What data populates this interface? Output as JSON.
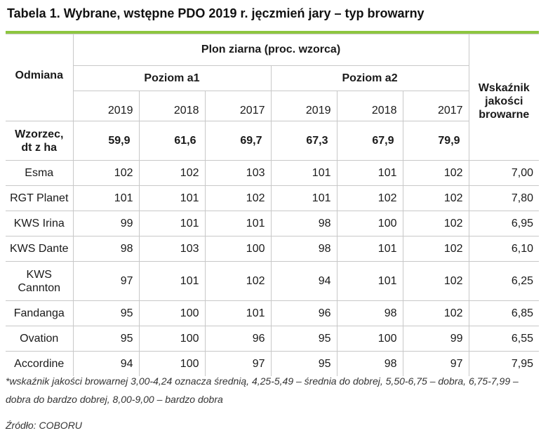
{
  "title": "Tabela 1. Wybrane, wstępne PDO 2019 r. jęczmień jary – typ browarny",
  "accent_color": "#8dc63f",
  "header": {
    "odmiana": "Odmiana",
    "plon": "Plon ziarna (proc. wzorca)",
    "poziom_a1": "Poziom a1",
    "poziom_a2": "Poziom a2",
    "wskaznik_line1": "Wskaźnik",
    "wskaznik_line2": "jakości",
    "wskaznik_line3": "browarne",
    "years": [
      "2019",
      "2018",
      "2017",
      "2019",
      "2018",
      "2017"
    ]
  },
  "wzorzec": {
    "label_line1": "Wzorzec,",
    "label_line2": "dt z ha",
    "values": [
      "59,9",
      "61,6",
      "69,7",
      "67,3",
      "67,9",
      "79,9"
    ]
  },
  "rows": [
    {
      "name": "Esma",
      "values": [
        "102",
        "102",
        "103",
        "101",
        "101",
        "102"
      ],
      "index": "7,00"
    },
    {
      "name": "RGT Planet",
      "values": [
        "101",
        "101",
        "102",
        "101",
        "102",
        "102"
      ],
      "index": "7,80"
    },
    {
      "name": "KWS Irina",
      "values": [
        "99",
        "101",
        "101",
        "98",
        "100",
        "102"
      ],
      "index": "6,95"
    },
    {
      "name": "KWS Dante",
      "values": [
        "98",
        "103",
        "100",
        "98",
        "101",
        "102"
      ],
      "index": "6,10"
    },
    {
      "name_line1": "KWS",
      "name_line2": "Cannton",
      "values": [
        "97",
        "101",
        "102",
        "94",
        "101",
        "102"
      ],
      "index": "6,25"
    },
    {
      "name": "Fandanga",
      "values": [
        "95",
        "100",
        "101",
        "96",
        "98",
        "102"
      ],
      "index": "6,85"
    },
    {
      "name": "Ovation",
      "values": [
        "95",
        "100",
        "96",
        "95",
        "100",
        "99"
      ],
      "index": "6,55"
    },
    {
      "name": "Accordine",
      "values": [
        "94",
        "100",
        "97",
        "95",
        "98",
        "97"
      ],
      "index": "7,95"
    }
  ],
  "footnote": "*wskaźnik jakości browarnej 3,00-4,24 oznacza średnią, 4,25-5,49 – średnia do dobrej, 5,50-6,75 – dobra, 6,75-7,99 – dobra do bardzo dobrej, 8,00-9,00 – bardzo dobra",
  "source": "Źródło: COBORU"
}
